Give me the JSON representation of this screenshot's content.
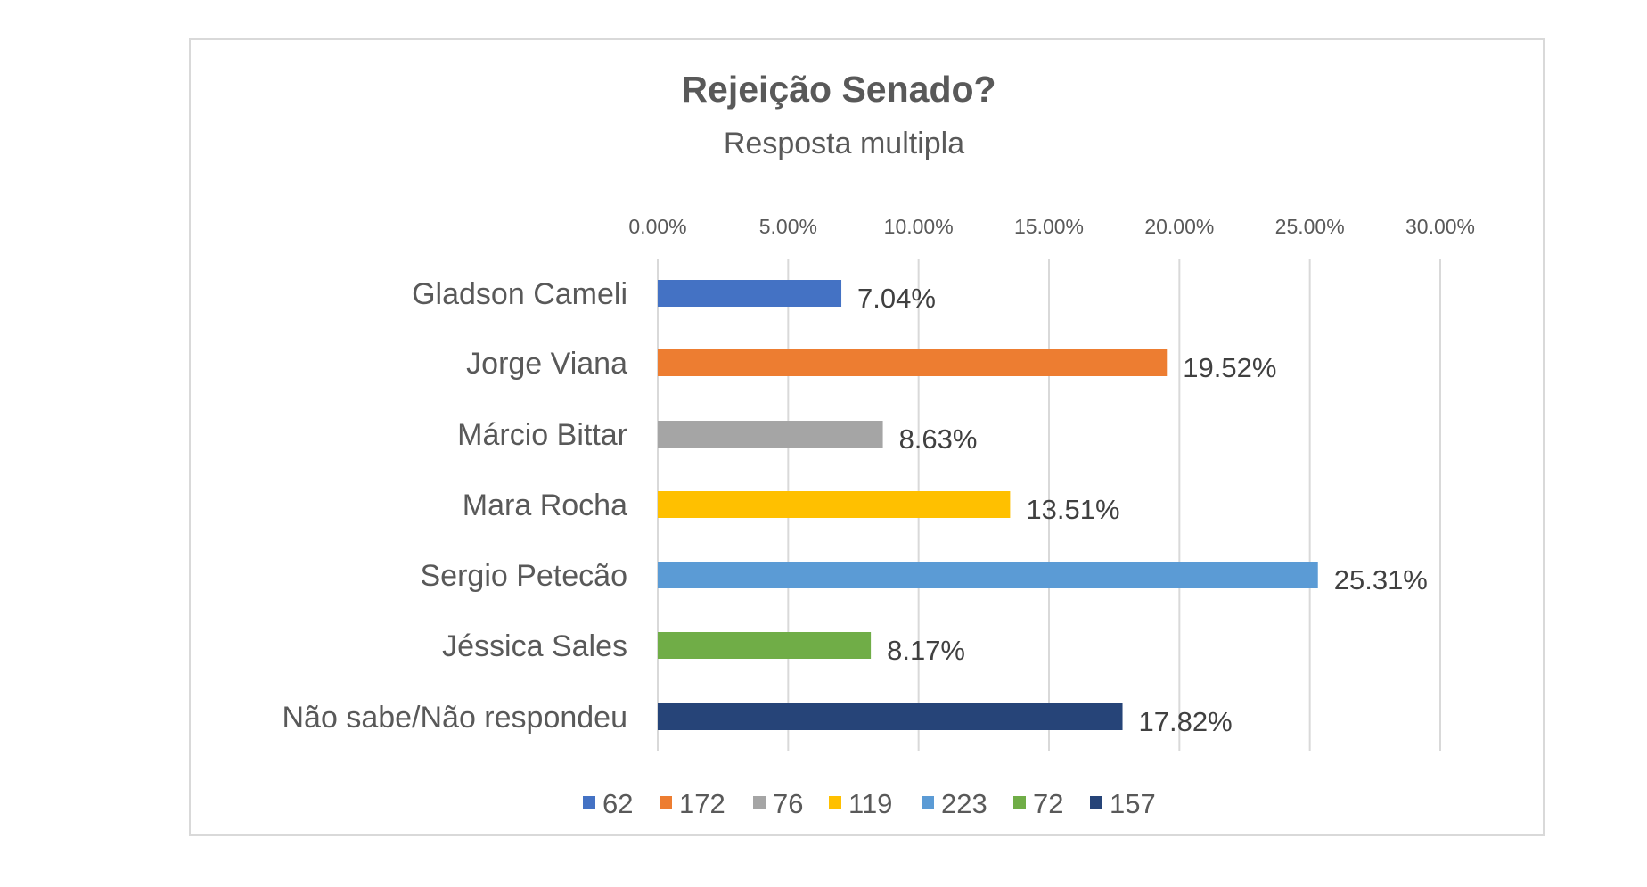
{
  "chart_data": {
    "type": "bar",
    "orientation": "horizontal",
    "title": "Rejeição Senado?",
    "subtitle": "Resposta multipla",
    "categories": [
      "Gladson Cameli",
      "Jorge Viana",
      "Márcio Bittar",
      "Mara Rocha",
      "Sergio Petecão",
      "Jéssica Sales",
      "Não sabe/Não respondeu"
    ],
    "values": [
      7.04,
      19.52,
      8.63,
      13.51,
      25.31,
      8.17,
      17.82
    ],
    "value_labels": [
      "7.04%",
      "19.52%",
      "8.63%",
      "13.51%",
      "25.31%",
      "8.17%",
      "17.82%"
    ],
    "colors": [
      "#4472c4",
      "#ed7d31",
      "#a5a5a5",
      "#ffc000",
      "#5b9bd5",
      "#70ad47",
      "#264478"
    ],
    "legend": [
      "62",
      "172",
      "76",
      "119",
      "223",
      "72",
      "157"
    ],
    "legend_placement": "bottom",
    "xlim": [
      0,
      30
    ],
    "xticks": [
      0,
      5,
      10,
      15,
      20,
      25,
      30
    ],
    "xtick_labels": [
      "0.00%",
      "5.00%",
      "10.00%",
      "15.00%",
      "20.00%",
      "25.00%",
      "30.00%"
    ],
    "xaxis_position": "top",
    "grid": true,
    "xlabel": "",
    "ylabel": ""
  }
}
